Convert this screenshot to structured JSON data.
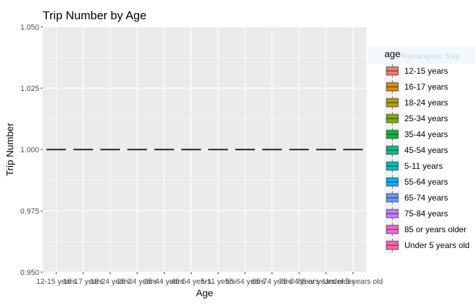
{
  "chart_data": {
    "type": "boxplot",
    "title": "Trip Number by Age",
    "xlabel": "Age",
    "ylabel": "Trip Number",
    "ylim": [
      0.95,
      1.05
    ],
    "yticks": [
      "0.950",
      "0.975",
      "1.000",
      "1.025",
      "1.050"
    ],
    "ytick_values": [
      0.95,
      0.975,
      1.0,
      1.025,
      1.05
    ],
    "categories": [
      "12-15 years",
      "16-17 years",
      "18-24 years",
      "25-34 years",
      "35-44 years",
      "45-54 years",
      "5-11 years",
      "55-64 years",
      "65-74 years",
      "75-84 years",
      "85 or years older",
      "Under 5 years old"
    ],
    "values": [
      1,
      1,
      1,
      1,
      1,
      1,
      1,
      1,
      1,
      1,
      1,
      1
    ],
    "grid": true,
    "legend": {
      "title": "age",
      "position": "right",
      "entries": [
        {
          "label": "12-15 years",
          "color": "#F8766D"
        },
        {
          "label": "16-17 years",
          "color": "#DE8C00"
        },
        {
          "label": "18-24 years",
          "color": "#B79F00"
        },
        {
          "label": "25-34 years",
          "color": "#7CAE00"
        },
        {
          "label": "35-44 years",
          "color": "#00BA38"
        },
        {
          "label": "45-54 years",
          "color": "#00C08B"
        },
        {
          "label": "5-11 years",
          "color": "#00BFC4"
        },
        {
          "label": "55-64 years",
          "color": "#00B4F0"
        },
        {
          "label": "65-74 years",
          "color": "#619CFF"
        },
        {
          "label": "75-84 years",
          "color": "#C77CFF"
        },
        {
          "label": "85 or years older",
          "color": "#F564E3"
        },
        {
          "label": "Under 5 years old",
          "color": "#FF64B0"
        }
      ]
    },
    "overlay_text": "Rectangular Snip"
  }
}
